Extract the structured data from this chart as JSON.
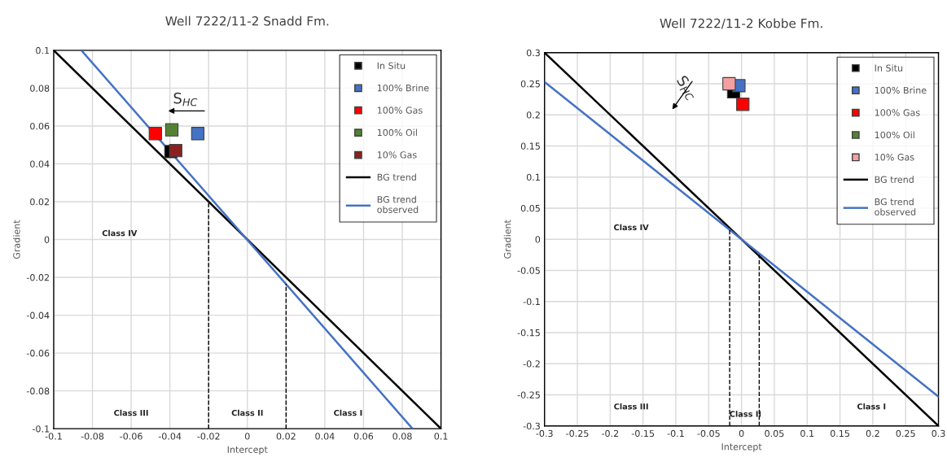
{
  "chart_data": [
    {
      "type": "scatter",
      "title": "Well 7222/11-2 Snadd Fm.",
      "xlabel": "Intercept",
      "ylabel": "Gradient",
      "xlim": [
        -0.1,
        0.1
      ],
      "xticks": [
        -0.1,
        -0.08,
        -0.06,
        -0.04,
        -0.02,
        0,
        0.02,
        0.04,
        0.06,
        0.08,
        0.1
      ],
      "ylim": [
        -0.1,
        0.1
      ],
      "yticks": [
        -0.1,
        -0.08,
        -0.06,
        -0.04,
        -0.02,
        0,
        0.02,
        0.04,
        0.06,
        0.08,
        0.1
      ],
      "grid": true,
      "legend": "top right",
      "series": [
        {
          "name": "In Situ",
          "marker": "square",
          "color": "#000000",
          "x": [
            -0.0395
          ],
          "values": [
            0.0465
          ]
        },
        {
          "name": "100% Brine",
          "marker": "square",
          "color": "#4472c4",
          "x": [
            -0.0256
          ],
          "values": [
            0.056
          ]
        },
        {
          "name": "100% Gas",
          "marker": "square",
          "color": "#ff0000",
          "x": [
            -0.0475
          ],
          "values": [
            0.056
          ]
        },
        {
          "name": "100% Oil",
          "marker": "square",
          "color": "#548235",
          "x": [
            -0.039
          ],
          "values": [
            0.058
          ]
        },
        {
          "name": "10% Gas",
          "marker": "square",
          "color": "#8b2020",
          "x": [
            -0.037
          ],
          "values": [
            0.047
          ]
        },
        {
          "name": "BG trend",
          "type": "line",
          "color": "#000000",
          "x": [
            -0.1,
            0.1
          ],
          "values": [
            0.1,
            -0.1
          ]
        },
        {
          "name": "BG trend\nobserved",
          "type": "line",
          "color": "#4472c4",
          "x": [
            -0.0857,
            0.0853
          ],
          "values": [
            0.1,
            -0.1
          ]
        },
        {
          "type": "line",
          "line_style": "dashed",
          "color": "#000000",
          "x": [
            -0.02,
            -0.02
          ],
          "values": [
            -0.1,
            0.02
          ]
        },
        {
          "type": "line",
          "line_style": "dashed",
          "color": "#000000",
          "x": [
            0.02,
            0.02
          ],
          "values": [
            -0.1,
            -0.0234
          ]
        }
      ],
      "annotations": [
        "Class IV",
        "Class III",
        "Class II",
        "Class I",
        "S$_{HC}$"
      ]
    },
    {
      "type": "scatter",
      "title": "Well 7222/11-2 Kobbe Fm.",
      "xlabel": "Intercept",
      "ylabel": "Gradient",
      "xlim": [
        -0.3,
        0.3
      ],
      "xticks": [
        -0.3,
        -0.25,
        -0.2,
        -0.15,
        -0.1,
        -0.05,
        0,
        0.05,
        0.1,
        0.15,
        0.2,
        0.25,
        0.3
      ],
      "ylim": [
        -0.3,
        0.3
      ],
      "yticks": [
        -0.3,
        -0.25,
        -0.2,
        -0.15,
        -0.1,
        -0.05,
        0,
        0.05,
        0.1,
        0.15,
        0.2,
        0.25,
        0.3
      ],
      "grid": true,
      "legend": "top right",
      "series": [
        {
          "name": "In Situ",
          "marker": "square",
          "color": "#000000",
          "x": [
            -0.012
          ],
          "values": [
            0.237
          ]
        },
        {
          "name": "100% Brine",
          "marker": "square",
          "color": "#4472c4",
          "x": [
            -0.004
          ],
          "values": [
            0.247
          ]
        },
        {
          "name": "100% Gas",
          "marker": "square",
          "color": "#ff0000",
          "x": [
            0.002
          ],
          "values": [
            0.217
          ]
        },
        {
          "name": "100% Oil",
          "marker": "square",
          "color": "#548235",
          "x": [
            null
          ],
          "values": [
            null
          ]
        },
        {
          "name": "10% Gas",
          "marker": "square",
          "color": "#f4a0a0",
          "x": [
            -0.019
          ],
          "values": [
            0.25
          ]
        },
        {
          "name": "BG trend",
          "type": "line",
          "color": "#000000",
          "x": [
            -0.3,
            0.3
          ],
          "values": [
            0.3,
            -0.3
          ]
        },
        {
          "name": "BG trend\nobserved",
          "type": "line",
          "color": "#4472c4",
          "x": [
            -0.3,
            0.3
          ],
          "values": [
            0.253,
            -0.253
          ]
        },
        {
          "type": "line",
          "line_style": "dashed",
          "color": "#000000",
          "x": [
            -0.018,
            -0.018
          ],
          "values": [
            -0.3,
            0.017
          ]
        },
        {
          "type": "line",
          "line_style": "dashed",
          "color": "#000000",
          "x": [
            0.027,
            0.027
          ],
          "values": [
            -0.3,
            -0.025
          ]
        }
      ],
      "annotations": [
        "Class IV",
        "Class III",
        "Class II",
        "Class I",
        "S$_{HC}$"
      ]
    }
  ]
}
